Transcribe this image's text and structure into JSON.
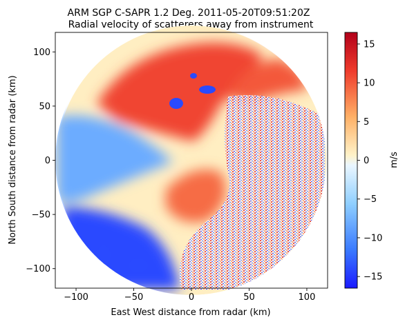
{
  "chart_data": {
    "type": "heatmap",
    "title": "ARM SGP C-SAPR 1.2 Deg. 2011-05-20T09:51:20Z",
    "subtitle": "Radial velocity of scatterers away from instrument",
    "xlabel": "East West distance from radar (km)",
    "ylabel": "North South distance from radar (km)",
    "xlim": [
      -118,
      118
    ],
    "ylim": [
      -118,
      118
    ],
    "xticks": [
      -100,
      -50,
      0,
      50,
      100
    ],
    "yticks": [
      -100,
      -50,
      0,
      50,
      100
    ],
    "data_extent_radius_km": 117,
    "colorbar": {
      "label": "m/s",
      "range": [
        -16.5,
        16.5
      ],
      "ticks": [
        -15,
        -10,
        -5,
        0,
        5,
        10,
        15
      ],
      "colormap": "blue-white-red (bwr-like)",
      "colors": [
        "#1a1aff",
        "#3a7aff",
        "#8fcfff",
        "#eaf6ff",
        "#fff2c8",
        "#ffb066",
        "#ef3b2c",
        "#b2001a"
      ]
    },
    "velocity_regions": [
      {
        "region": "north / north-northwest",
        "velocity_ms": 11
      },
      {
        "region": "northeast",
        "velocity_ms": 10
      },
      {
        "region": "west",
        "velocity_ms": -8
      },
      {
        "region": "southwest",
        "velocity_ms": -14
      },
      {
        "region": "south-southeast near radar",
        "velocity_ms": 9
      },
      {
        "region": "east / southeast (noisy)",
        "velocity_ms": 0
      },
      {
        "region": "center-west",
        "velocity_ms": 1
      }
    ]
  }
}
